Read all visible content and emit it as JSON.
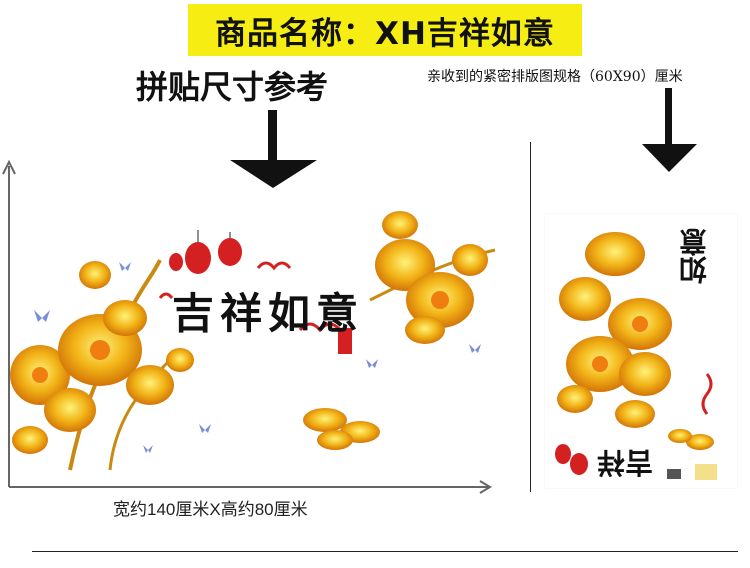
{
  "header": {
    "product_name": "商品名称：XH吉祥如意"
  },
  "reference": {
    "title": "拼贴尺寸参考",
    "size_label": "宽约140厘米X高约80厘米"
  },
  "sheet": {
    "spec_note": "亲收到的紧密排版图规格（60X90）厘米"
  },
  "artwork": {
    "calligraphy": "吉祥如意",
    "seal_text": "吉祥",
    "colors": {
      "gold": "#e9b317",
      "orange": "#f08a10",
      "red": "#d42020",
      "banner": "#f6ee12"
    }
  }
}
